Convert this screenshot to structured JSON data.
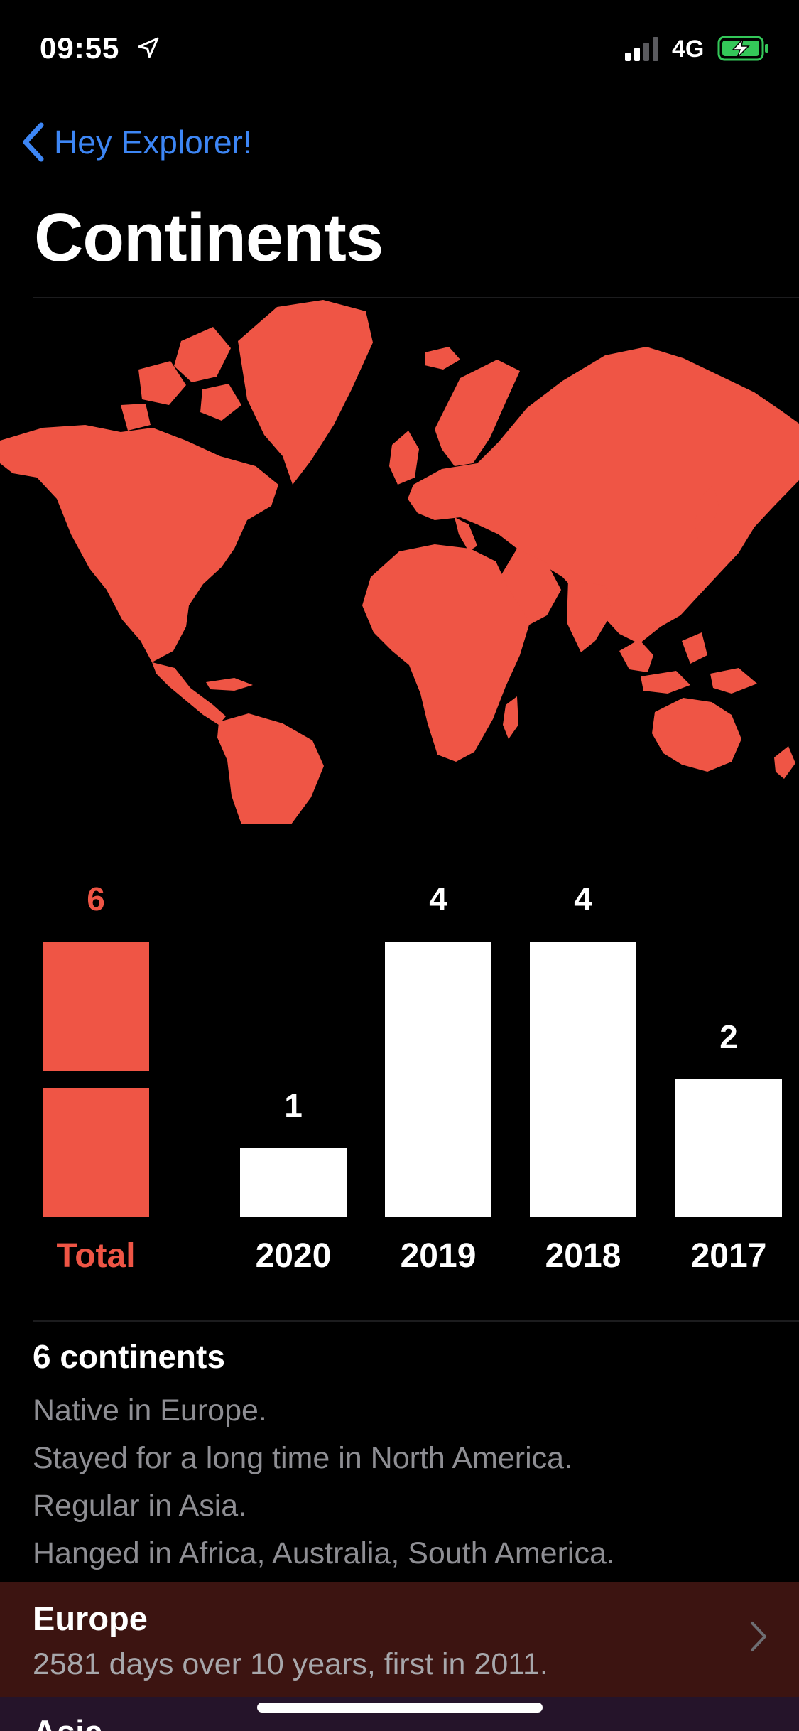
{
  "status_bar": {
    "time": "09:55",
    "network": "4G",
    "location_icon": "location-arrow-icon",
    "signal_icon": "cellular-signal-icon",
    "battery_icon": "battery-charging-icon",
    "battery_color": "#34c759"
  },
  "nav": {
    "back_label": "Hey Explorer!",
    "back_icon": "chevron-left-icon"
  },
  "page": {
    "title": "Continents"
  },
  "map": {
    "icon": "world-map",
    "fill_color": "#ef5545"
  },
  "chart_data": {
    "type": "bar",
    "categories": [
      "Total",
      "2020",
      "2019",
      "2018",
      "2017"
    ],
    "values": [
      6,
      1,
      4,
      4,
      2
    ],
    "value_labels": [
      "6",
      "1",
      "4",
      "4",
      "2"
    ],
    "highlight_color": "#ef5545",
    "bar_color": "#ffffff",
    "ylim": [
      0,
      4
    ]
  },
  "summary": {
    "title": "6 continents",
    "lines": [
      "Native in Europe.",
      "Stayed for a long time in North America.",
      "Regular in Asia.",
      "Hanged in Africa, Australia, South America."
    ]
  },
  "list": {
    "items": [
      {
        "title": "Europe",
        "subtitle": "2581 days over 10 years, first in 2011.",
        "background": "#3c1411"
      },
      {
        "title": "Asia",
        "background": "#25142a"
      }
    ],
    "chevron_icon": "chevron-right-icon"
  }
}
